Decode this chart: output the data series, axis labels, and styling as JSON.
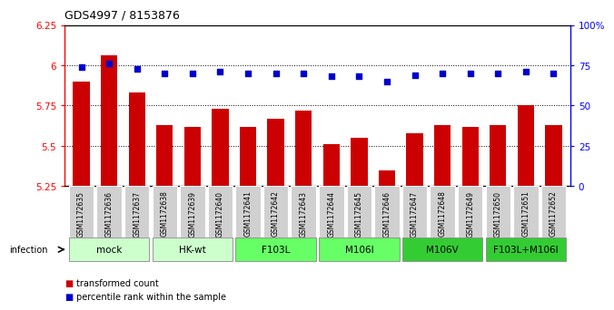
{
  "title": "GDS4997 / 8153876",
  "samples": [
    "GSM1172635",
    "GSM1172636",
    "GSM1172637",
    "GSM1172638",
    "GSM1172639",
    "GSM1172640",
    "GSM1172641",
    "GSM1172642",
    "GSM1172643",
    "GSM1172644",
    "GSM1172645",
    "GSM1172646",
    "GSM1172647",
    "GSM1172648",
    "GSM1172649",
    "GSM1172650",
    "GSM1172651",
    "GSM1172652"
  ],
  "bar_values": [
    5.9,
    6.06,
    5.83,
    5.63,
    5.62,
    5.73,
    5.62,
    5.67,
    5.72,
    5.51,
    5.55,
    5.35,
    5.58,
    5.63,
    5.62,
    5.63,
    5.75,
    5.63
  ],
  "percentile_values": [
    74,
    76,
    73,
    70,
    70,
    71,
    70,
    70,
    70,
    68,
    68,
    65,
    69,
    70,
    70,
    70,
    71,
    70
  ],
  "ylim_left": [
    5.25,
    6.25
  ],
  "ylim_right": [
    0,
    100
  ],
  "yticks_left": [
    5.25,
    5.5,
    5.75,
    6.0,
    6.25
  ],
  "ytick_labels_left": [
    "5.25",
    "5.5",
    "5.75",
    "6",
    "6.25"
  ],
  "yticks_right": [
    0,
    25,
    50,
    75,
    100
  ],
  "ytick_labels_right": [
    "0",
    "25",
    "50",
    "75",
    "100%"
  ],
  "groups": [
    {
      "label": "mock",
      "start": 0,
      "end": 2,
      "color": "#ccffcc"
    },
    {
      "label": "HK-wt",
      "start": 3,
      "end": 5,
      "color": "#ccffcc"
    },
    {
      "label": "F103L",
      "start": 6,
      "end": 8,
      "color": "#66ff66"
    },
    {
      "label": "M106I",
      "start": 9,
      "end": 11,
      "color": "#66ff66"
    },
    {
      "label": "M106V",
      "start": 12,
      "end": 14,
      "color": "#33cc33"
    },
    {
      "label": "F103L+M106I",
      "start": 15,
      "end": 17,
      "color": "#33cc33"
    }
  ],
  "bar_color": "#cc0000",
  "dot_color": "#0000cc",
  "label_bg": "#d0d0d0",
  "infection_label": "infection",
  "legend_bar_label": "transformed count",
  "legend_dot_label": "percentile rank within the sample",
  "bar_width": 0.6
}
